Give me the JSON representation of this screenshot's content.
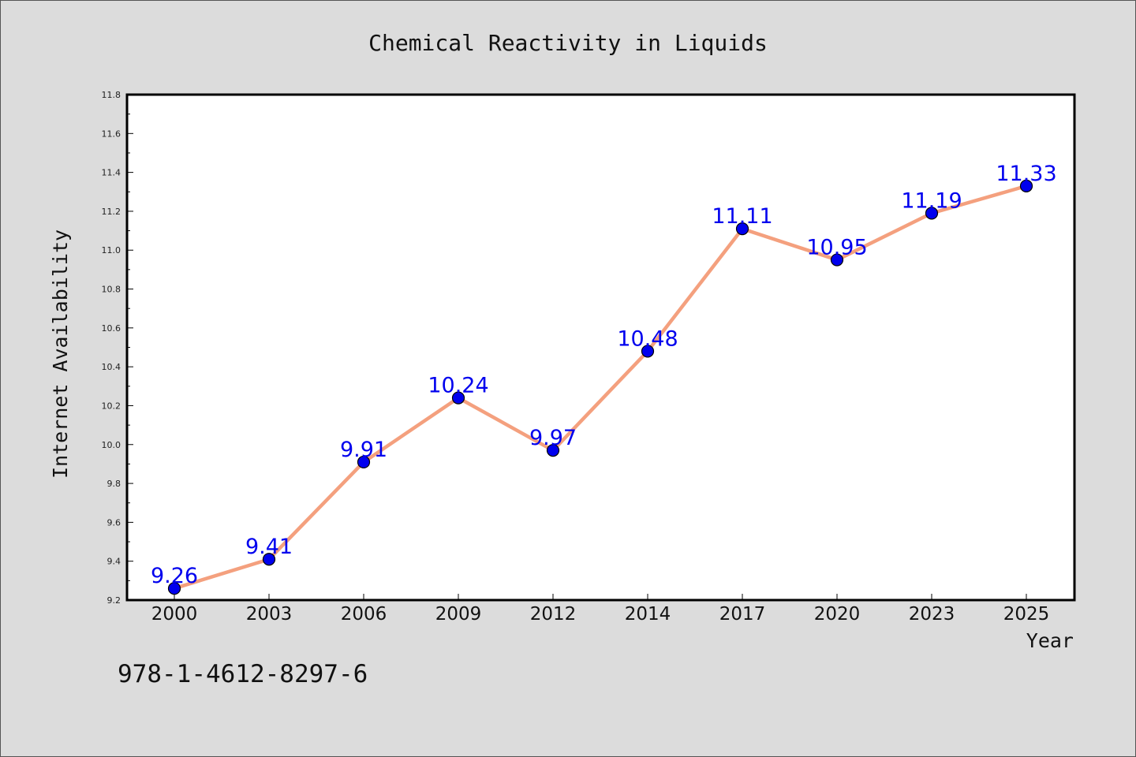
{
  "chart_data": {
    "type": "line",
    "title": "Chemical Reactivity in Liquids",
    "xlabel": "Year",
    "ylabel": "Internet Availability",
    "categories": [
      "2000",
      "2003",
      "2006",
      "2009",
      "2012",
      "2014",
      "2017",
      "2020",
      "2023",
      "2025"
    ],
    "series": [
      {
        "values": [
          9.26,
          9.41,
          9.91,
          10.24,
          9.97,
          10.48,
          11.11,
          10.95,
          11.19,
          11.33
        ],
        "data_labels": [
          "9.26",
          "9.41",
          "9.91",
          "10.24",
          "9.97",
          "10.48",
          "11.11",
          "10.95",
          "11.19",
          "11.33"
        ]
      }
    ],
    "ylim": [
      9.2,
      11.8
    ],
    "yticks": [
      "9.2",
      "9.4",
      "9.6",
      "9.8",
      "10.0",
      "10.2",
      "10.4",
      "10.6",
      "10.8",
      "11.0",
      "11.2",
      "11.4",
      "11.6",
      "11.8"
    ],
    "grid": false,
    "legend": "none",
    "colors": {
      "line": "#f4a07e",
      "marker": "#0000ee",
      "label": "#0000ee",
      "background": "#dcdcdc",
      "plot_area": "#ffffff"
    }
  },
  "footer": {
    "isbn": "978-1-4612-8297-6"
  }
}
